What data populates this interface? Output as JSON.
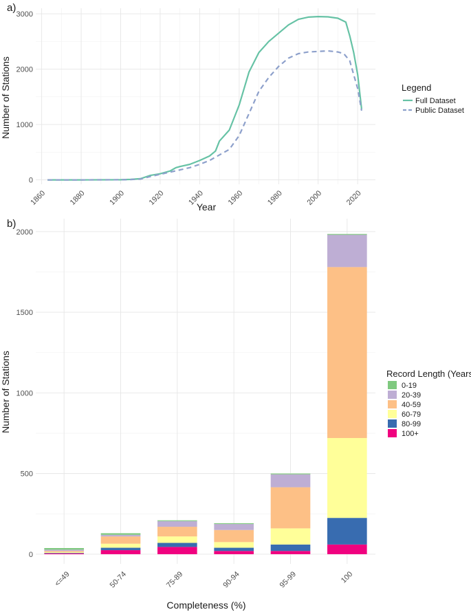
{
  "chart_data": [
    {
      "type": "line",
      "panel_label": "a)",
      "xlabel": "Year",
      "ylabel": "Number of Stations",
      "xlim": [
        1857,
        2029
      ],
      "ylim": [
        -80,
        3100
      ],
      "xticks": [
        1860,
        1880,
        1900,
        1920,
        1940,
        1960,
        1980,
        2000,
        2020
      ],
      "yticks": [
        0,
        1000,
        2000,
        3000
      ],
      "legend": {
        "title": "Legend",
        "position": "right"
      },
      "series": [
        {
          "name": "Full Dataset",
          "color": "#66c2a5",
          "dash": "solid",
          "x": [
            1863,
            1880,
            1900,
            1905,
            1910,
            1915,
            1920,
            1925,
            1928,
            1930,
            1935,
            1940,
            1945,
            1948,
            1950,
            1955,
            1960,
            1965,
            1970,
            1975,
            1980,
            1985,
            1990,
            1995,
            2000,
            2005,
            2010,
            2014,
            2016,
            2018,
            2020,
            2022
          ],
          "y": [
            0,
            0,
            2,
            8,
            20,
            80,
            110,
            160,
            220,
            240,
            280,
            350,
            430,
            520,
            700,
            900,
            1350,
            1950,
            2300,
            2500,
            2650,
            2800,
            2900,
            2940,
            2950,
            2945,
            2920,
            2850,
            2600,
            2300,
            1900,
            1280
          ]
        },
        {
          "name": "Public Dataset",
          "color": "#8da0cb",
          "dash": "dashed",
          "x": [
            1863,
            1880,
            1900,
            1905,
            1910,
            1915,
            1920,
            1925,
            1930,
            1935,
            1940,
            1945,
            1950,
            1955,
            1960,
            1965,
            1970,
            1975,
            1980,
            1985,
            1990,
            1995,
            2000,
            2005,
            2010,
            2013,
            2016,
            2018,
            2020,
            2022
          ],
          "y": [
            0,
            0,
            2,
            6,
            15,
            60,
            100,
            140,
            180,
            220,
            280,
            350,
            450,
            550,
            800,
            1200,
            1600,
            1850,
            2050,
            2200,
            2280,
            2310,
            2320,
            2330,
            2310,
            2280,
            2150,
            1900,
            1650,
            1250
          ]
        }
      ]
    },
    {
      "type": "bar",
      "stacked": true,
      "panel_label": "b)",
      "xlabel": "Completeness (%)",
      "ylabel": "Number of Stations",
      "ylim": [
        -60,
        2080
      ],
      "yticks": [
        0,
        500,
        1000,
        1500,
        2000
      ],
      "categories": [
        "<=49",
        "50-74",
        "75-89",
        "90-94",
        "95-99",
        "100"
      ],
      "legend": {
        "title": "Record Length (Years)",
        "position": "right"
      },
      "series": [
        {
          "name": "100+",
          "color": "#f0027f",
          "values": [
            5,
            25,
            45,
            20,
            20,
            60
          ]
        },
        {
          "name": "80-99",
          "color": "#386cb0",
          "values": [
            3,
            15,
            25,
            20,
            40,
            165
          ]
        },
        {
          "name": "60-79",
          "color": "#ffff99",
          "values": [
            5,
            25,
            40,
            35,
            100,
            495
          ]
        },
        {
          "name": "40-59",
          "color": "#fdc086",
          "values": [
            7,
            45,
            60,
            75,
            255,
            1060
          ]
        },
        {
          "name": "20-39",
          "color": "#beaed4",
          "values": [
            8,
            10,
            35,
            37,
            80,
            200
          ]
        },
        {
          "name": "0-19",
          "color": "#7fc97f",
          "values": [
            10,
            10,
            5,
            5,
            5,
            5
          ]
        }
      ]
    }
  ]
}
